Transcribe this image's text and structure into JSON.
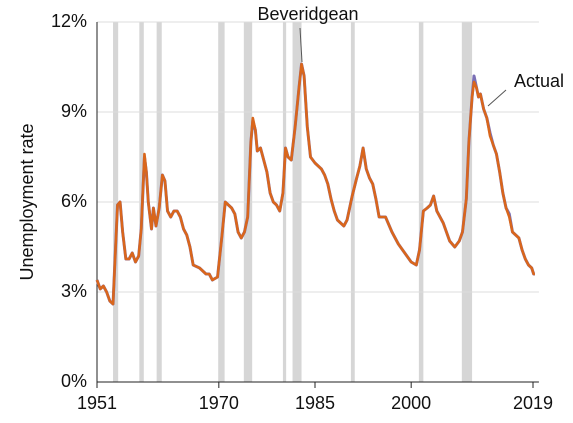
{
  "chart_data": {
    "type": "line",
    "ylabel": "Unemployment rate",
    "x": [
      1951.0,
      1951.5,
      1952.0,
      1952.5,
      1953.0,
      1953.5,
      1953.9,
      1954.2,
      1954.6,
      1955.0,
      1955.5,
      1956.0,
      1956.5,
      1957.0,
      1957.5,
      1957.9,
      1958.4,
      1958.7,
      1959.0,
      1959.5,
      1959.8,
      1960.2,
      1960.7,
      1961.2,
      1961.6,
      1962.0,
      1962.5,
      1963.0,
      1963.5,
      1964.0,
      1964.5,
      1965.0,
      1965.5,
      1966.0,
      1967.0,
      1968.0,
      1968.5,
      1969.0,
      1969.8,
      1970.5,
      1971.0,
      1971.5,
      1972.0,
      1972.5,
      1973.0,
      1973.5,
      1974.0,
      1974.5,
      1975.0,
      1975.3,
      1975.7,
      1976.0,
      1976.5,
      1977.0,
      1977.5,
      1978.0,
      1978.5,
      1979.0,
      1979.5,
      1980.0,
      1980.4,
      1980.8,
      1981.3,
      1981.9,
      1982.5,
      1982.9,
      1983.3,
      1983.8,
      1984.3,
      1985.0,
      1986.0,
      1986.5,
      1987.0,
      1987.5,
      1988.0,
      1988.5,
      1989.0,
      1989.5,
      1990.0,
      1990.8,
      1991.5,
      1992.0,
      1992.5,
      1993.0,
      1993.5,
      1994.0,
      1994.5,
      1995.0,
      1996.0,
      1997.0,
      1998.0,
      1999.0,
      2000.0,
      2000.8,
      2001.3,
      2001.9,
      2002.5,
      2003.0,
      2003.5,
      2004.0,
      2004.5,
      2005.0,
      2005.5,
      2006.0,
      2006.8,
      2007.5,
      2008.0,
      2008.6,
      2009.0,
      2009.5,
      2009.8,
      2010.2,
      2010.5,
      2010.8,
      2011.3,
      2011.8,
      2012.3,
      2012.8,
      2013.3,
      2013.8,
      2014.3,
      2014.8,
      2015.3,
      2015.8,
      2016.3,
      2016.8,
      2017.3,
      2017.8,
      2018.3,
      2018.8,
      2019.1,
      2019.3
    ],
    "series": [
      {
        "name": "Beveridgean",
        "color": "#7a6fb5",
        "values": [
          3.4,
          3.1,
          3.2,
          3.0,
          2.7,
          2.6,
          4.5,
          5.9,
          6.0,
          5.0,
          4.1,
          4.1,
          4.3,
          4.0,
          4.2,
          5.1,
          7.5,
          7.0,
          6.0,
          5.1,
          5.8,
          5.2,
          5.8,
          6.9,
          6.7,
          5.7,
          5.5,
          5.7,
          5.7,
          5.5,
          5.1,
          4.9,
          4.5,
          3.9,
          3.8,
          3.6,
          3.6,
          3.4,
          3.5,
          4.9,
          6.0,
          5.9,
          5.8,
          5.6,
          5.0,
          4.8,
          5.0,
          5.5,
          8.0,
          8.7,
          8.4,
          7.7,
          7.8,
          7.4,
          7.0,
          6.3,
          6.0,
          5.9,
          5.7,
          6.3,
          7.8,
          7.5,
          7.4,
          8.5,
          9.8,
          10.6,
          10.2,
          8.5,
          7.5,
          7.3,
          7.1,
          6.9,
          6.6,
          6.1,
          5.7,
          5.4,
          5.3,
          5.2,
          5.4,
          6.2,
          6.8,
          7.2,
          7.8,
          7.1,
          6.8,
          6.6,
          6.1,
          5.5,
          5.5,
          5.0,
          4.6,
          4.3,
          4.0,
          3.9,
          4.4,
          5.7,
          5.8,
          5.9,
          6.2,
          5.7,
          5.5,
          5.3,
          5.0,
          4.7,
          4.5,
          4.7,
          5.0,
          6.1,
          8.0,
          9.5,
          10.2,
          9.8,
          9.5,
          9.6,
          9.1,
          8.8,
          8.3,
          7.9,
          7.6,
          7.0,
          6.3,
          5.8,
          5.6,
          5.0,
          4.9,
          4.8,
          4.4,
          4.1,
          3.9,
          3.8,
          3.6,
          3.6
        ]
      },
      {
        "name": "Actual",
        "color": "#d9661c",
        "values": [
          3.4,
          3.1,
          3.2,
          3.0,
          2.7,
          2.6,
          4.5,
          5.9,
          6.0,
          5.0,
          4.1,
          4.1,
          4.3,
          4.0,
          4.2,
          5.1,
          7.6,
          7.0,
          6.0,
          5.1,
          5.8,
          5.2,
          5.8,
          6.9,
          6.7,
          5.7,
          5.5,
          5.7,
          5.7,
          5.5,
          5.1,
          4.9,
          4.5,
          3.9,
          3.8,
          3.6,
          3.6,
          3.4,
          3.5,
          4.9,
          6.0,
          5.9,
          5.8,
          5.6,
          5.0,
          4.8,
          5.0,
          5.5,
          8.0,
          8.8,
          8.4,
          7.7,
          7.8,
          7.4,
          7.0,
          6.3,
          6.0,
          5.9,
          5.7,
          6.3,
          7.8,
          7.5,
          7.4,
          8.5,
          9.8,
          10.6,
          10.2,
          8.5,
          7.5,
          7.3,
          7.1,
          6.9,
          6.6,
          6.1,
          5.7,
          5.4,
          5.3,
          5.2,
          5.4,
          6.2,
          6.8,
          7.2,
          7.8,
          7.1,
          6.8,
          6.6,
          6.1,
          5.5,
          5.5,
          5.0,
          4.6,
          4.3,
          4.0,
          3.9,
          4.4,
          5.7,
          5.8,
          5.9,
          6.2,
          5.7,
          5.5,
          5.3,
          5.0,
          4.7,
          4.5,
          4.7,
          5.0,
          6.1,
          8.0,
          9.5,
          10.0,
          9.8,
          9.5,
          9.6,
          9.1,
          8.8,
          8.2,
          7.9,
          7.6,
          7.0,
          6.3,
          5.8,
          5.5,
          5.0,
          4.9,
          4.8,
          4.4,
          4.1,
          3.9,
          3.8,
          3.6,
          3.6
        ]
      }
    ],
    "shaded_periods": [
      [
        1953.5,
        1954.3
      ],
      [
        1957.6,
        1958.3
      ],
      [
        1960.3,
        1961.1
      ],
      [
        1969.9,
        1970.9
      ],
      [
        1973.9,
        1975.2
      ],
      [
        1980.0,
        1980.5
      ],
      [
        1981.5,
        1982.9
      ],
      [
        1990.6,
        1991.2
      ],
      [
        2001.2,
        2001.9
      ],
      [
        2007.9,
        2009.5
      ]
    ],
    "shade_color": "#d6d6d6",
    "xlim": [
      1951,
      2019.3
    ],
    "xticks": [
      1951,
      1970,
      1985,
      2000,
      2019
    ],
    "ylim": [
      0,
      12
    ],
    "yticks": [
      {
        "value": 0,
        "label": "0%"
      },
      {
        "value": 3,
        "label": "3%"
      },
      {
        "value": 6,
        "label": "6%"
      },
      {
        "value": 9,
        "label": "9%"
      },
      {
        "value": 12,
        "label": "12%"
      }
    ],
    "grid": true
  }
}
